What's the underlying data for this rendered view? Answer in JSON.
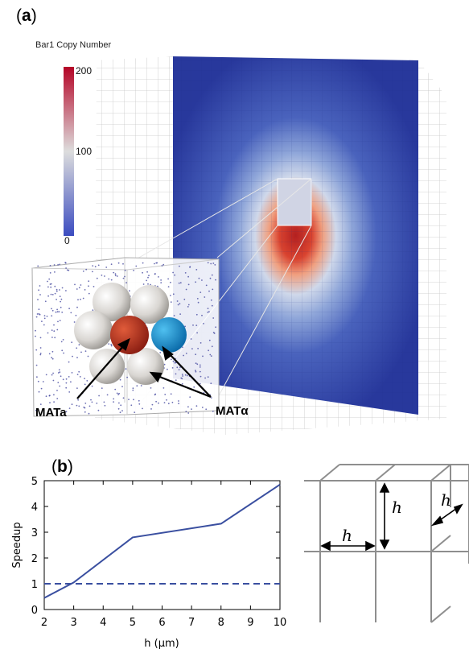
{
  "panel_a": {
    "label_paren_open": "(",
    "label_letter": "a",
    "label_paren_close": ")",
    "colorbar": {
      "title": "Bar1 Copy Number",
      "ticks": [
        "200",
        "100",
        "0"
      ],
      "colors": [
        "#3b4cc0",
        "#dddddd",
        "#b40426"
      ]
    },
    "callout_left": "MATa",
    "callout_right": "MATα"
  },
  "panel_b": {
    "label_paren_open": "(",
    "label_letter": "b",
    "label_paren_close": ")",
    "grid_symbols": [
      "h",
      "h",
      "h"
    ]
  },
  "chart_data": {
    "type": "line",
    "title": "",
    "xlabel": "h (μm)",
    "ylabel": "Speedup",
    "xlim": [
      2,
      10
    ],
    "ylim": [
      0,
      5
    ],
    "xticks": [
      2,
      3,
      4,
      5,
      6,
      7,
      8,
      9,
      10
    ],
    "yticks": [
      0,
      1,
      2,
      3,
      4,
      5
    ],
    "series": [
      {
        "style": "solid",
        "color": "#3a4fa0",
        "x": [
          2,
          3,
          5,
          8,
          10
        ],
        "y": [
          0.45,
          1.05,
          2.8,
          3.33,
          4.85
        ]
      },
      {
        "style": "dashed",
        "color": "#3a4fa0",
        "x": [
          2,
          10
        ],
        "y": [
          1,
          1
        ]
      }
    ]
  }
}
